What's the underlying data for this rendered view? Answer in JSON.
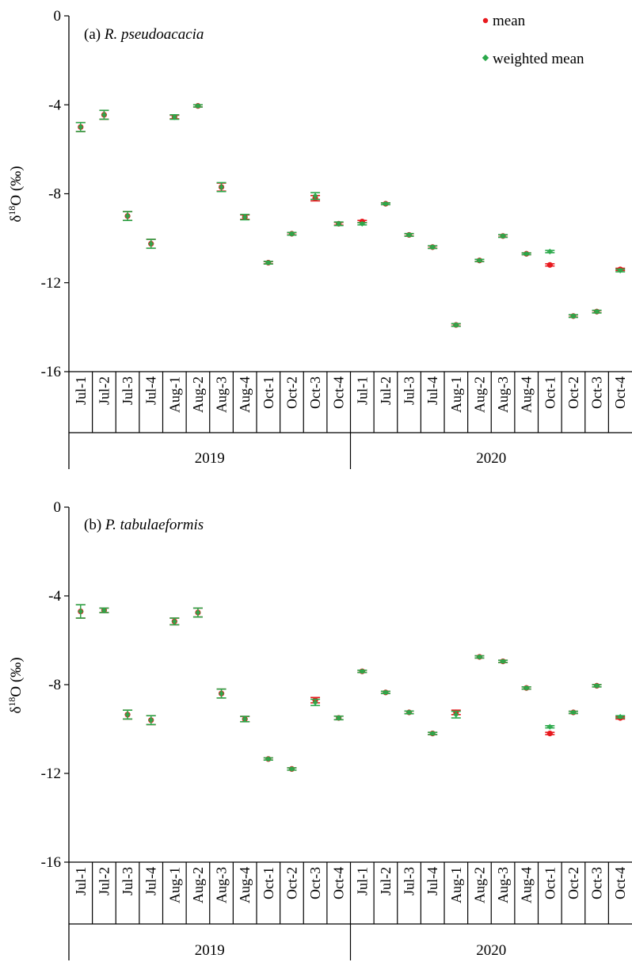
{
  "legend": {
    "mean_label": "mean",
    "weighted_label": "weighted mean",
    "mean_color": "#e8191e",
    "weighted_color": "#2aa84a",
    "placement": "top-right"
  },
  "chart_data": [
    {
      "type": "scatter",
      "title": "(a) R. pseudoacacia",
      "title_prefix": "(a) ",
      "title_species": "R. pseudoacacia",
      "ylabel_prefix": "δ",
      "ylabel_sup": "18",
      "ylabel_suffix": "O (‰)",
      "ylim": [
        -16,
        0
      ],
      "yticks": [
        "0",
        "-4",
        "-8",
        "-12",
        "-16"
      ],
      "categories": [
        "Jul-1",
        "Jul-2",
        "Jul-3",
        "Jul-4",
        "Aug-1",
        "Aug-2",
        "Aug-3",
        "Aug-4",
        "Oct-1",
        "Oct-2",
        "Oct-3",
        "Oct-4",
        "Jul-1",
        "Jul-2",
        "Jul-3",
        "Jul-4",
        "Aug-1",
        "Aug-2",
        "Aug-3",
        "Aug-4",
        "Oct-1",
        "Oct-2",
        "Oct-3",
        "Oct-4"
      ],
      "groups": [
        {
          "label": "2019",
          "count": 12
        },
        {
          "label": "2020",
          "count": 12
        }
      ],
      "series": [
        {
          "name": "mean",
          "values": [
            -5.0,
            -4.45,
            -9.0,
            -10.25,
            -4.55,
            -4.05,
            -7.7,
            -9.05,
            -11.1,
            -9.8,
            -8.2,
            -9.35,
            -9.25,
            -8.45,
            -9.85,
            -10.4,
            -13.9,
            -11.0,
            -9.9,
            -10.7,
            -11.2,
            -13.5,
            -13.3,
            -11.4
          ],
          "errors": [
            0.2,
            0.2,
            0.2,
            0.2,
            0.08,
            0.05,
            0.18,
            0.1,
            0.05,
            0.05,
            0.12,
            0.06,
            0.05,
            0.04,
            0.05,
            0.05,
            0.05,
            0.05,
            0.05,
            0.04,
            0.05,
            0.05,
            0.05,
            0.05
          ]
        },
        {
          "name": "weighted mean",
          "values": [
            -5.0,
            -4.45,
            -9.0,
            -10.25,
            -4.55,
            -4.05,
            -7.7,
            -9.05,
            -11.1,
            -9.8,
            -8.1,
            -9.35,
            -9.35,
            -8.45,
            -9.85,
            -10.4,
            -13.9,
            -11.0,
            -9.9,
            -10.7,
            -10.6,
            -13.5,
            -13.3,
            -11.45
          ],
          "errors": [
            0.2,
            0.2,
            0.2,
            0.2,
            0.1,
            0.05,
            0.2,
            0.12,
            0.06,
            0.06,
            0.15,
            0.08,
            0.05,
            0.04,
            0.06,
            0.06,
            0.06,
            0.05,
            0.06,
            0.04,
            0.05,
            0.06,
            0.06,
            0.06
          ]
        }
      ]
    },
    {
      "type": "scatter",
      "title": "(b) P. tabulaeformis",
      "title_prefix": "(b) ",
      "title_species": "P. tabulaeformis",
      "ylabel_prefix": "δ",
      "ylabel_sup": "18",
      "ylabel_suffix": "O (‰)",
      "ylim": [
        -16,
        0
      ],
      "yticks": [
        "0",
        "-4",
        "-8",
        "-12",
        "-16"
      ],
      "categories": [
        "Jul-1",
        "Jul-2",
        "Jul-3",
        "Jul-4",
        "Aug-1",
        "Aug-2",
        "Aug-3",
        "Aug-4",
        "Oct-1",
        "Oct-2",
        "Oct-3",
        "Oct-4",
        "Jul-1",
        "Jul-2",
        "Jul-3",
        "Jul-4",
        "Aug-1",
        "Aug-2",
        "Aug-3",
        "Aug-4",
        "Oct-1",
        "Oct-2",
        "Oct-3",
        "Oct-4"
      ],
      "groups": [
        {
          "label": "2019",
          "count": 12
        },
        {
          "label": "2020",
          "count": 12
        }
      ],
      "series": [
        {
          "name": "mean",
          "values": [
            -4.7,
            -4.65,
            -9.35,
            -9.6,
            -5.15,
            -4.75,
            -8.4,
            -9.55,
            -11.35,
            -11.8,
            -8.7,
            -9.5,
            -7.4,
            -8.35,
            -9.25,
            -10.2,
            -9.25,
            -6.75,
            -6.95,
            -8.15,
            -10.2,
            -9.25,
            -8.05,
            -9.5
          ],
          "errors": [
            0.3,
            0.1,
            0.2,
            0.2,
            0.15,
            0.2,
            0.2,
            0.12,
            0.05,
            0.05,
            0.12,
            0.08,
            0.05,
            0.05,
            0.06,
            0.05,
            0.1,
            0.05,
            0.05,
            0.05,
            0.05,
            0.05,
            0.05,
            0.05
          ]
        },
        {
          "name": "weighted mean",
          "values": [
            -4.7,
            -4.65,
            -9.35,
            -9.6,
            -5.15,
            -4.75,
            -8.4,
            -9.55,
            -11.35,
            -11.8,
            -8.8,
            -9.5,
            -7.4,
            -8.35,
            -9.25,
            -10.2,
            -9.35,
            -6.75,
            -6.95,
            -8.15,
            -9.9,
            -9.25,
            -8.05,
            -9.45
          ],
          "errors": [
            0.3,
            0.1,
            0.2,
            0.2,
            0.15,
            0.2,
            0.2,
            0.12,
            0.05,
            0.05,
            0.14,
            0.08,
            0.05,
            0.05,
            0.06,
            0.05,
            0.15,
            0.05,
            0.05,
            0.05,
            0.05,
            0.05,
            0.05,
            0.05
          ]
        }
      ]
    }
  ]
}
